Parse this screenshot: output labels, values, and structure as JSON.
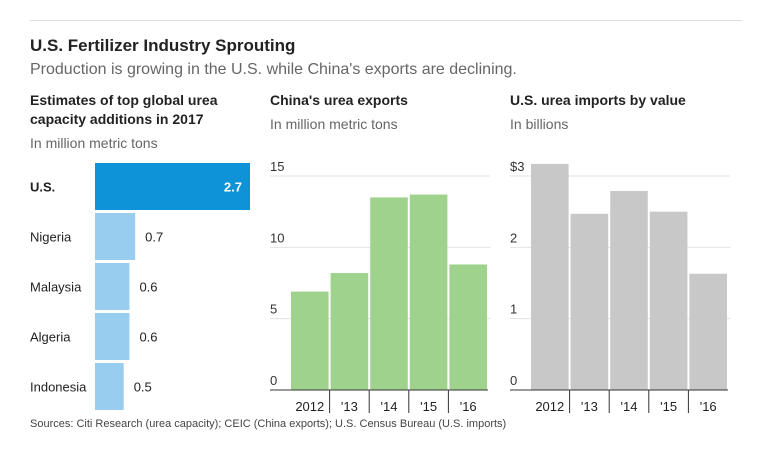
{
  "title": "U.S. Fertilizer Industry Sprouting",
  "subtitle": "Production is growing in the U.S. while China's exports are declining.",
  "source": "Sources: Citi Research (urea capacity); CEIC (China exports); U.S. Census Bureau (U.S. imports)",
  "chart_data": [
    {
      "type": "bar",
      "orientation": "horizontal",
      "title_lines": [
        "Estimates of top global urea",
        "capacity additions in 2017"
      ],
      "ylabel": "In million metric tons",
      "categories": [
        "U.S.",
        "Nigeria",
        "Malaysia",
        "Algeria",
        "Indonesia"
      ],
      "values": [
        2.7,
        0.7,
        0.6,
        0.6,
        0.5
      ],
      "value_labels": [
        "2.7",
        "0.7",
        "0.6",
        "0.6",
        "0.5"
      ],
      "colors": {
        "highlight": "#0e93d8",
        "other": "#99cdef"
      }
    },
    {
      "type": "bar",
      "title": "China's urea exports",
      "ylabel": "In million metric tons",
      "categories": [
        "2012",
        "'13",
        "'14",
        "'15",
        "'16"
      ],
      "values": [
        6.9,
        8.2,
        13.5,
        13.7,
        8.8
      ],
      "ylim": [
        0,
        15
      ],
      "yticks": [
        0,
        5,
        10,
        15
      ],
      "ytick_labels": [
        "0",
        "5",
        "10",
        "15"
      ],
      "color": "#9fd38d"
    },
    {
      "type": "bar",
      "title": "U.S. urea imports by value",
      "ylabel": "In billions",
      "categories": [
        "2012",
        "'13",
        "'14",
        "'15",
        "'16"
      ],
      "values": [
        3.17,
        2.47,
        2.79,
        2.5,
        1.63
      ],
      "ylim": [
        0,
        3
      ],
      "yticks": [
        0,
        1,
        2,
        3
      ],
      "ytick_labels": [
        "0",
        "1",
        "2",
        "$3"
      ],
      "color": "#c8c8c8"
    }
  ]
}
